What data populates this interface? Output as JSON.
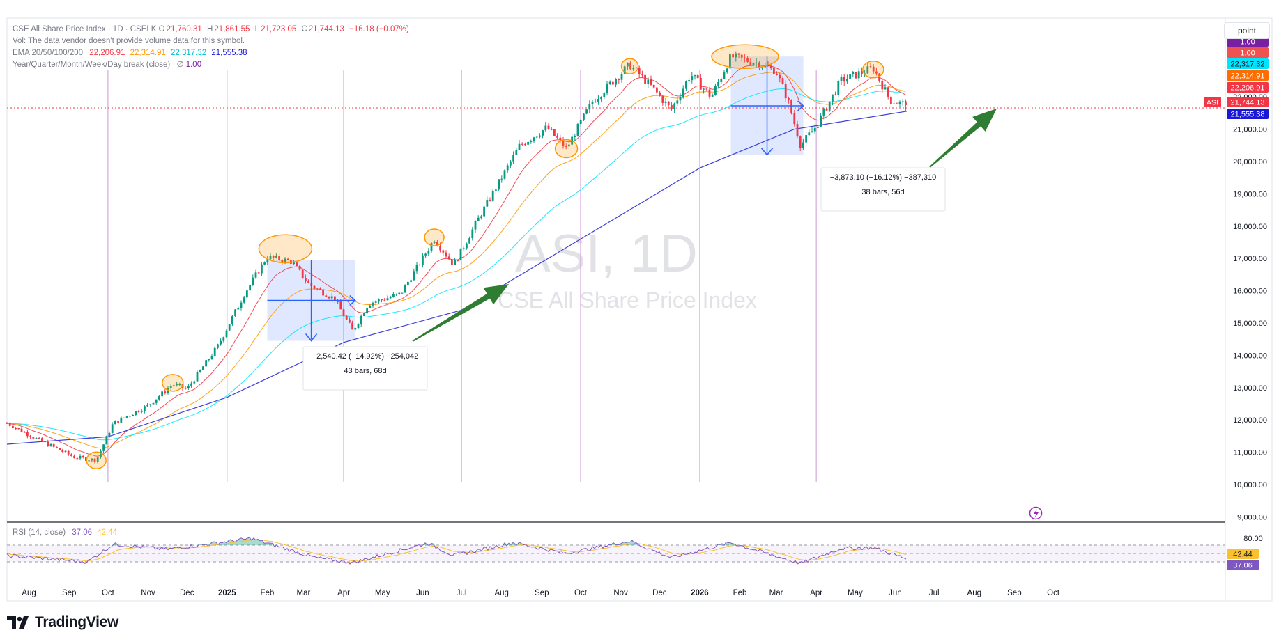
{
  "legend": {
    "title": "CSE All Share Price Index · 1D · CSELK",
    "ohlc": {
      "o": "21,760.31",
      "h": "21,861.55",
      "l": "21,723.05",
      "c": "21,744.13",
      "chg": "−16.18 (−0.07%)"
    },
    "vol_note": "Vol: The data vendor doesn't provide volume data for this symbol.",
    "ema_label": "EMA 20/50/100/200",
    "ema_values": [
      "22,206.91",
      "22,314.91",
      "22,317.32",
      "21,555.38"
    ],
    "break_label": "Year/Quarter/Month/Week/Day break (close)",
    "break_value": "1.00"
  },
  "scale_mode": "point",
  "watermark": {
    "symbol": "ASI, 1D",
    "name": "CSE All Share Price Index"
  },
  "price_axis": {
    "ticks": [
      "22,000.00",
      "21,000.00",
      "20,000.00",
      "19,000.00",
      "18,000.00",
      "17,000.00",
      "16,000.00",
      "15,000.00",
      "14,000.00",
      "13,000.00",
      "12,000.00",
      "11,000.00",
      "10,000.00",
      "9,000.00"
    ],
    "ticks_values": [
      22000,
      21000,
      20000,
      19000,
      18000,
      17000,
      16000,
      15000,
      14000,
      13000,
      12000,
      11000,
      10000,
      9000
    ]
  },
  "price_badges": [
    {
      "label": "1.00",
      "color": "#7b1fa2"
    },
    {
      "label": "1.00",
      "color": "#ef5350"
    },
    {
      "label": "22,317.32",
      "color": "#00e5ff",
      "dark": true
    },
    {
      "label": "22,314.91",
      "color": "#ff6d00"
    },
    {
      "label": "22,206.91",
      "color": "#f23645"
    },
    {
      "label": "21,744.13",
      "color": "#f23645",
      "tag": "ASI"
    },
    {
      "label": "21,555.38",
      "color": "#1a17d9"
    }
  ],
  "time_axis": [
    "Aug",
    "Sep",
    "Oct",
    "Nov",
    "Dec",
    "2025",
    "Feb",
    "Mar",
    "Apr",
    "May",
    "Jun",
    "Jul",
    "Aug",
    "Sep",
    "Oct",
    "Nov",
    "Dec",
    "2026",
    "Feb",
    "Mar",
    "Apr",
    "May",
    "Jun",
    "Jul",
    "Aug",
    "Sep",
    "Oct"
  ],
  "measurements": [
    {
      "line1": "−2,540.42 (−14.92%) −254,042",
      "line2": "43 bars, 68d"
    },
    {
      "line1": "−3,873.10 (−16.12%) −387,310",
      "line2": "38 bars, 56d"
    }
  ],
  "rsi": {
    "label": "RSI (14, close)",
    "value": "37.06",
    "ma_value": "42.44",
    "ticks": [
      "80.00"
    ]
  },
  "colors": {
    "up": "#089981",
    "down": "#f23645",
    "ema20": "#f23645",
    "ema50": "#ff9800",
    "ema100": "#00e5ff",
    "ema200": "#3f3fd6",
    "rsi": "#7e57c2",
    "rsi_ma": "#fbc02d",
    "arrow": "#2e7d32",
    "highlight": "#ff9800"
  },
  "chart_data": {
    "type": "candlestick",
    "title": "CSE All Share Price Index · 1D · CSELK",
    "ylim": [
      9000,
      23300
    ],
    "close_path": [
      {
        "x": "2024-07-15",
        "y": 11900
      },
      {
        "x": "2024-08-10",
        "y": 11350
      },
      {
        "x": "2024-09-05",
        "y": 10850
      },
      {
        "x": "2024-09-22",
        "y": 10750
      },
      {
        "x": "2024-10-05",
        "y": 11900
      },
      {
        "x": "2024-11-01",
        "y": 12450
      },
      {
        "x": "2024-11-20",
        "y": 13100
      },
      {
        "x": "2024-12-01",
        "y": 12950
      },
      {
        "x": "2024-12-25",
        "y": 14300
      },
      {
        "x": "2025-01-15",
        "y": 15950
      },
      {
        "x": "2025-02-01",
        "y": 17050
      },
      {
        "x": "2025-02-20",
        "y": 16900
      },
      {
        "x": "2025-03-05",
        "y": 16200
      },
      {
        "x": "2025-03-25",
        "y": 15750
      },
      {
        "x": "2025-04-08",
        "y": 14750
      },
      {
        "x": "2025-04-20",
        "y": 15600
      },
      {
        "x": "2025-05-15",
        "y": 15900
      },
      {
        "x": "2025-06-10",
        "y": 17600
      },
      {
        "x": "2025-06-25",
        "y": 16800
      },
      {
        "x": "2025-07-15",
        "y": 18300
      },
      {
        "x": "2025-08-15",
        "y": 20500
      },
      {
        "x": "2025-09-05",
        "y": 21050
      },
      {
        "x": "2025-09-20",
        "y": 20400
      },
      {
        "x": "2025-10-10",
        "y": 21850
      },
      {
        "x": "2025-11-08",
        "y": 23000
      },
      {
        "x": "2025-11-25",
        "y": 22300
      },
      {
        "x": "2025-12-10",
        "y": 21600
      },
      {
        "x": "2025-12-25",
        "y": 22700
      },
      {
        "x": "2026-01-10",
        "y": 22000
      },
      {
        "x": "2026-01-25",
        "y": 23250
      },
      {
        "x": "2026-02-15",
        "y": 23050
      },
      {
        "x": "2026-03-01",
        "y": 22800
      },
      {
        "x": "2026-03-10",
        "y": 21900
      },
      {
        "x": "2026-03-20",
        "y": 20500
      },
      {
        "x": "2026-04-01",
        "y": 21100
      },
      {
        "x": "2026-04-20",
        "y": 22500
      },
      {
        "x": "2026-05-15",
        "y": 22900
      },
      {
        "x": "2026-05-28",
        "y": 21900
      },
      {
        "x": "2026-06-10",
        "y": 21744
      }
    ],
    "ema200_path": [
      {
        "x": "2024-07-15",
        "y": 11250
      },
      {
        "x": "2024-10-01",
        "y": 11480
      },
      {
        "x": "2025-01-01",
        "y": 12700
      },
      {
        "x": "2025-04-01",
        "y": 14400
      },
      {
        "x": "2025-07-01",
        "y": 15400
      },
      {
        "x": "2025-10-01",
        "y": 17600
      },
      {
        "x": "2026-01-01",
        "y": 19800
      },
      {
        "x": "2026-03-15",
        "y": 21000
      },
      {
        "x": "2026-06-10",
        "y": 21555
      }
    ],
    "rsi_path": [
      {
        "x": "2024-07-15",
        "y": 45
      },
      {
        "x": "2024-09-15",
        "y": 30
      },
      {
        "x": "2024-10-05",
        "y": 72
      },
      {
        "x": "2024-11-15",
        "y": 60
      },
      {
        "x": "2025-01-20",
        "y": 86
      },
      {
        "x": "2025-03-10",
        "y": 40
      },
      {
        "x": "2025-04-08",
        "y": 28
      },
      {
        "x": "2025-06-05",
        "y": 75
      },
      {
        "x": "2025-06-25",
        "y": 45
      },
      {
        "x": "2025-08-10",
        "y": 76
      },
      {
        "x": "2025-09-20",
        "y": 50
      },
      {
        "x": "2025-11-08",
        "y": 80
      },
      {
        "x": "2025-12-10",
        "y": 40
      },
      {
        "x": "2026-01-25",
        "y": 76
      },
      {
        "x": "2026-03-20",
        "y": 26
      },
      {
        "x": "2026-04-20",
        "y": 62
      },
      {
        "x": "2026-05-15",
        "y": 64
      },
      {
        "x": "2026-06-10",
        "y": 37
      }
    ]
  }
}
